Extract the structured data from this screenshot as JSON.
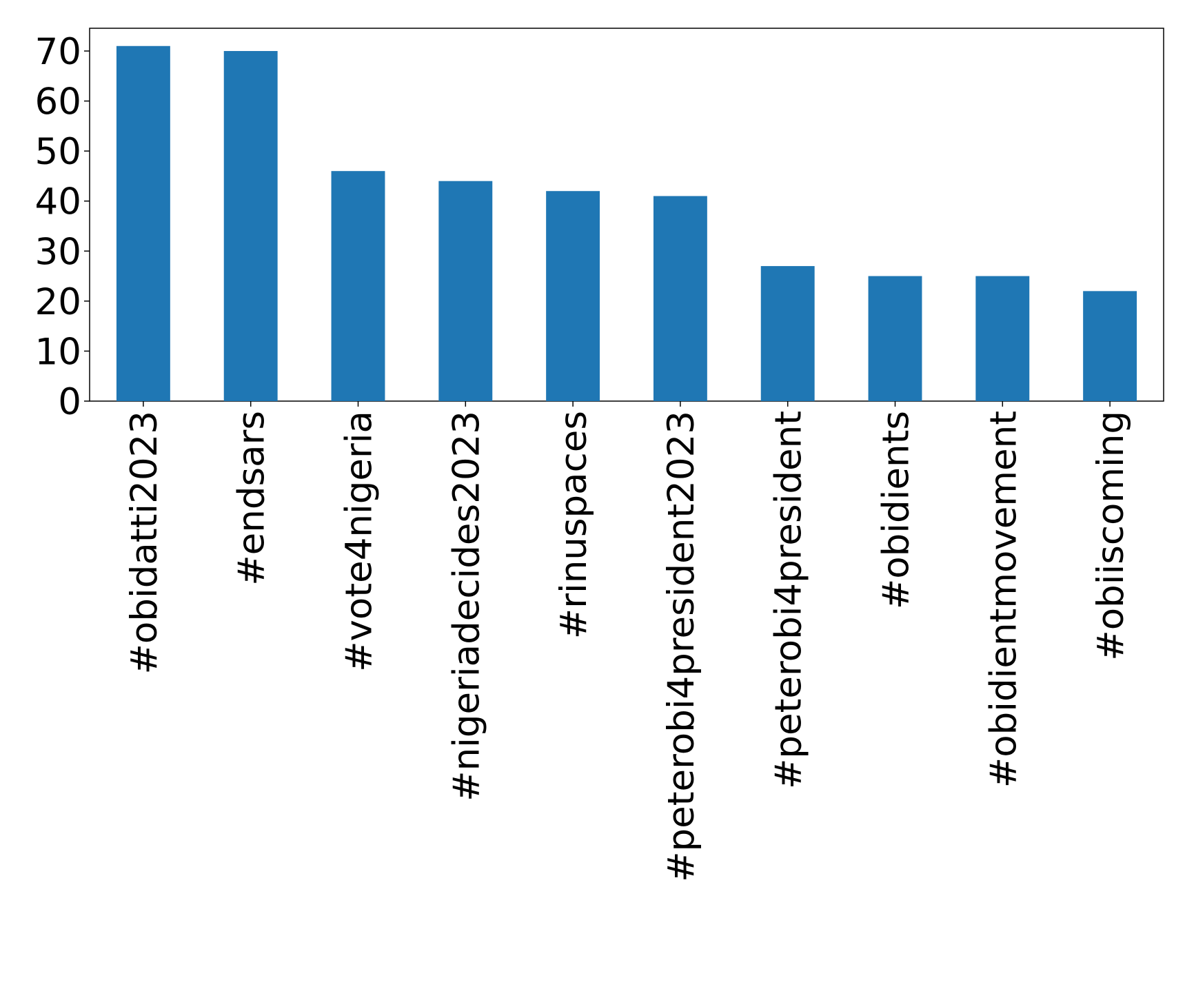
{
  "chart_data": {
    "type": "bar",
    "categories": [
      "#obidatti2023",
      "#endsars",
      "#vote4nigeria",
      "#nigeriadecides2023",
      "#rinuspaces",
      "#peterobi4president2023",
      "#peterobi4president",
      "#obidients",
      "#obidientmovement",
      "#obiiscoming"
    ],
    "values": [
      71,
      70,
      46,
      44,
      42,
      41,
      27,
      25,
      25,
      22
    ],
    "color": "#1f77b4",
    "ylim": [
      0,
      74.55
    ],
    "yticks": [
      0,
      10,
      20,
      30,
      40,
      50,
      60,
      70
    ],
    "grid": false
  }
}
